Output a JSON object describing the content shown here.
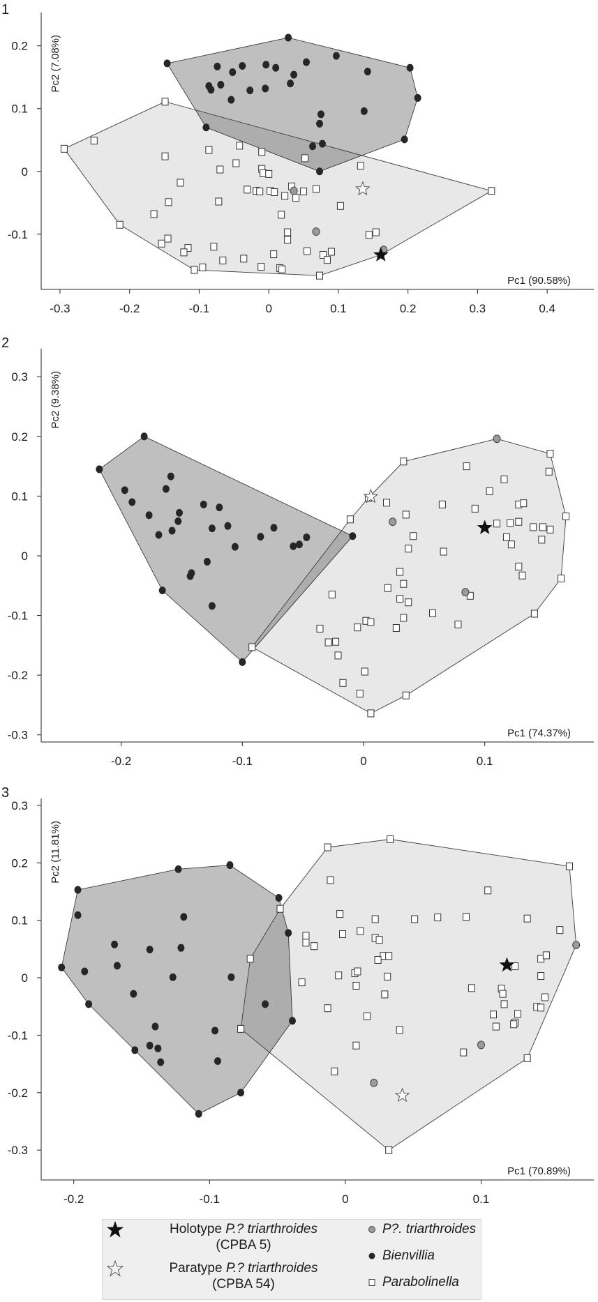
{
  "chart_data": [
    {
      "type": "scatter",
      "panel_label": "1",
      "xlabel": "Pc1 (90.58%)",
      "ylabel": "Pc2 (7.08%)",
      "xlim": [
        -0.327,
        0.467
      ],
      "ylim": [
        -0.188,
        0.253
      ],
      "xticks": [
        -0.3,
        -0.2,
        -0.1,
        0,
        0.1,
        0.2,
        0.3,
        0.4
      ],
      "xtick_labels": [
        "-0.3",
        "-0.2",
        "-0.1",
        "0",
        "0.1",
        "0.2",
        "0.3",
        "0.4"
      ],
      "yticks": [
        -0.1,
        0,
        0.1,
        0.2
      ],
      "ytick_labels": [
        "-0.1",
        "0",
        "0.1",
        "0.2"
      ],
      "grid": false,
      "series": {
        "bienvillia": [
          [
            -0.146,
            0.172
          ],
          [
            0.028,
            0.213
          ],
          [
            0.097,
            0.184
          ],
          [
            0.203,
            0.165
          ],
          [
            0.214,
            0.117
          ],
          [
            0.195,
            0.051
          ],
          [
            0.073,
            0.0
          ],
          [
            -0.09,
            0.07
          ],
          [
            -0.086,
            0.136
          ],
          [
            -0.083,
            0.13
          ],
          [
            -0.069,
            0.138
          ],
          [
            -0.074,
            0.167
          ],
          [
            -0.052,
            0.158
          ],
          [
            -0.038,
            0.168
          ],
          [
            -0.054,
            0.114
          ],
          [
            -0.027,
            0.129
          ],
          [
            -0.005,
            0.132
          ],
          [
            -0.004,
            0.17
          ],
          [
            0.01,
            0.165
          ],
          [
            0.036,
            0.154
          ],
          [
            0.031,
            0.14
          ],
          [
            0.054,
            0.174
          ],
          [
            0.142,
            0.159
          ],
          [
            0.137,
            0.096
          ],
          [
            0.075,
            0.091
          ],
          [
            0.073,
            0.076
          ],
          [
            0.077,
            0.044
          ],
          [
            0.063,
            0.04
          ]
        ],
        "parabolinella": [
          [
            -0.294,
            0.036
          ],
          [
            -0.251,
            0.049
          ],
          [
            -0.149,
            0.111
          ],
          [
            -0.149,
            0.024
          ],
          [
            -0.086,
            0.034
          ],
          [
            -0.042,
            0.041
          ],
          [
            -0.01,
            0.031
          ],
          [
            0.052,
            0.021
          ],
          [
            0.132,
            0.009
          ],
          [
            -0.07,
            0.003
          ],
          [
            -0.047,
            0.013
          ],
          [
            -0.01,
            0.004
          ],
          [
            -0.008,
            -0.003
          ],
          [
            0.0,
            -0.004
          ],
          [
            -0.127,
            -0.018
          ],
          [
            -0.031,
            -0.029
          ],
          [
            -0.018,
            -0.031
          ],
          [
            -0.013,
            -0.032
          ],
          [
            0.002,
            -0.031
          ],
          [
            0.008,
            -0.033
          ],
          [
            0.023,
            -0.039
          ],
          [
            0.033,
            -0.024
          ],
          [
            0.039,
            -0.042
          ],
          [
            0.05,
            -0.032
          ],
          [
            0.068,
            -0.028
          ],
          [
            0.32,
            -0.031
          ],
          [
            -0.144,
            -0.049
          ],
          [
            -0.072,
            -0.048
          ],
          [
            0.103,
            -0.055
          ],
          [
            -0.165,
            -0.068
          ],
          [
            0.018,
            -0.069
          ],
          [
            -0.214,
            -0.085
          ],
          [
            0.027,
            -0.097
          ],
          [
            0.027,
            -0.109
          ],
          [
            0.144,
            -0.101
          ],
          [
            0.154,
            -0.097
          ],
          [
            -0.154,
            -0.115
          ],
          [
            -0.145,
            -0.107
          ],
          [
            -0.116,
            -0.122
          ],
          [
            -0.122,
            -0.129
          ],
          [
            -0.079,
            -0.12
          ],
          [
            0.007,
            -0.132
          ],
          [
            0.055,
            -0.127
          ],
          [
            0.078,
            -0.133
          ],
          [
            0.09,
            -0.128
          ],
          [
            0.084,
            -0.141
          ],
          [
            -0.066,
            -0.142
          ],
          [
            -0.036,
            -0.139
          ],
          [
            -0.011,
            -0.152
          ],
          [
            0.016,
            -0.154
          ],
          [
            0.019,
            -0.156
          ],
          [
            -0.107,
            -0.157
          ],
          [
            -0.095,
            -0.153
          ],
          [
            0.073,
            -0.166
          ]
        ],
        "p_triarthroides": [
          [
            0.036,
            -0.031
          ],
          [
            0.068,
            -0.096
          ],
          [
            0.165,
            -0.125
          ]
        ],
        "holotype": [
          [
            0.161,
            -0.133
          ]
        ],
        "paratype": [
          [
            0.135,
            -0.028
          ]
        ]
      }
    },
    {
      "type": "scatter",
      "panel_label": "2",
      "xlabel": "Pc1 (74.37%)",
      "ylabel": "Pc2 (9.38%)",
      "xlim": [
        -0.266,
        0.19
      ],
      "ylim": [
        -0.312,
        0.347
      ],
      "xticks": [
        -0.2,
        -0.1,
        0,
        0.1
      ],
      "xtick_labels": [
        "-0.2",
        "-0.1",
        "0",
        "0.1"
      ],
      "yticks": [
        -0.3,
        -0.2,
        -0.1,
        0,
        0.1,
        0.2,
        0.3
      ],
      "ytick_labels": [
        "-0.3",
        "-0.2",
        "-0.1",
        "0",
        "0.1",
        "0.2",
        "0.3"
      ],
      "grid": false,
      "series": {
        "bienvillia": [
          [
            -0.181,
            0.2
          ],
          [
            -0.218,
            0.145
          ],
          [
            -0.197,
            0.11
          ],
          [
            -0.191,
            0.09
          ],
          [
            -0.177,
            0.068
          ],
          [
            -0.159,
            0.133
          ],
          [
            -0.163,
            0.112
          ],
          [
            -0.152,
            0.072
          ],
          [
            -0.153,
            0.058
          ],
          [
            -0.158,
            0.042
          ],
          [
            -0.169,
            0.035
          ],
          [
            -0.132,
            0.086
          ],
          [
            -0.119,
            0.081
          ],
          [
            -0.125,
            0.046
          ],
          [
            -0.112,
            0.05
          ],
          [
            -0.085,
            0.032
          ],
          [
            -0.074,
            0.047
          ],
          [
            -0.047,
            0.031
          ],
          [
            -0.009,
            0.033
          ],
          [
            -0.106,
            0.015
          ],
          [
            -0.058,
            0.016
          ],
          [
            -0.053,
            0.019
          ],
          [
            -0.129,
            -0.01
          ],
          [
            -0.142,
            -0.029
          ],
          [
            -0.143,
            -0.034
          ],
          [
            -0.166,
            -0.058
          ],
          [
            -0.125,
            -0.084
          ],
          [
            -0.1,
            -0.178
          ]
        ],
        "parabolinella": [
          [
            0.033,
            0.158
          ],
          [
            0.085,
            0.15
          ],
          [
            0.154,
            0.171
          ],
          [
            0.153,
            0.141
          ],
          [
            0.116,
            0.128
          ],
          [
            0.104,
            0.108
          ],
          [
            0.019,
            0.089
          ],
          [
            0.065,
            0.086
          ],
          [
            0.092,
            0.079
          ],
          [
            0.128,
            0.086
          ],
          [
            0.132,
            0.088
          ],
          [
            0.035,
            0.069
          ],
          [
            -0.011,
            0.061
          ],
          [
            0.167,
            0.066
          ],
          [
            0.11,
            0.054
          ],
          [
            0.121,
            0.055
          ],
          [
            0.128,
            0.057
          ],
          [
            0.14,
            0.048
          ],
          [
            0.148,
            0.048
          ],
          [
            0.154,
            0.044
          ],
          [
            0.041,
            0.033
          ],
          [
            0.118,
            0.031
          ],
          [
            0.147,
            0.027
          ],
          [
            0.004,
            0.097
          ],
          [
            0.122,
            0.019
          ],
          [
            0.037,
            0.012
          ],
          [
            0.066,
            0.007
          ],
          [
            0.128,
            -0.018
          ],
          [
            0.131,
            -0.033
          ],
          [
            0.163,
            -0.038
          ],
          [
            0.03,
            -0.027
          ],
          [
            0.033,
            -0.047
          ],
          [
            0.02,
            -0.054
          ],
          [
            -0.026,
            -0.065
          ],
          [
            0.03,
            -0.072
          ],
          [
            0.037,
            -0.078
          ],
          [
            0.088,
            -0.067
          ],
          [
            0.057,
            -0.096
          ],
          [
            0.141,
            -0.097
          ],
          [
            0.002,
            -0.109
          ],
          [
            0.006,
            -0.111
          ],
          [
            0.033,
            -0.104
          ],
          [
            -0.036,
            -0.122
          ],
          [
            -0.005,
            -0.12
          ],
          [
            0.027,
            -0.121
          ],
          [
            0.078,
            -0.115
          ],
          [
            -0.029,
            -0.145
          ],
          [
            -0.023,
            -0.144
          ],
          [
            -0.092,
            -0.153
          ],
          [
            -0.021,
            -0.167
          ],
          [
            0.001,
            -0.194
          ],
          [
            -0.017,
            -0.213
          ],
          [
            -0.003,
            -0.231
          ],
          [
            0.035,
            -0.234
          ],
          [
            0.006,
            -0.264
          ]
        ],
        "p_triarthroides": [
          [
            0.024,
            0.057
          ],
          [
            0.11,
            0.196
          ],
          [
            0.084,
            -0.061
          ]
        ],
        "holotype": [
          [
            0.1,
            0.047
          ]
        ],
        "paratype": [
          [
            0.006,
            0.099
          ]
        ]
      }
    },
    {
      "type": "scatter",
      "panel_label": "3",
      "xlabel": "Pc1 (70.89%)",
      "ylabel": "Pc2 (11.81%)",
      "xlim": [
        -0.224,
        0.183
      ],
      "ylim": [
        -0.352,
        0.312
      ],
      "xticks": [
        -0.2,
        -0.1,
        0,
        0.1
      ],
      "xtick_labels": [
        "-0.2",
        "-0.1",
        "0",
        "0.1"
      ],
      "yticks": [
        -0.3,
        -0.2,
        -0.1,
        0,
        0.1,
        0.2,
        0.3
      ],
      "ytick_labels": [
        "-0.3",
        "-0.2",
        "-0.1",
        "0",
        "0.1",
        "0.2",
        "0.3"
      ],
      "grid": false,
      "series": {
        "bienvillia": [
          [
            -0.085,
            0.196
          ],
          [
            -0.123,
            0.189
          ],
          [
            -0.197,
            0.153
          ],
          [
            -0.197,
            0.109
          ],
          [
            -0.049,
            0.139
          ],
          [
            -0.119,
            0.106
          ],
          [
            -0.042,
            0.078
          ],
          [
            -0.17,
            0.058
          ],
          [
            -0.144,
            0.049
          ],
          [
            -0.121,
            0.052
          ],
          [
            -0.209,
            0.018
          ],
          [
            -0.168,
            0.021
          ],
          [
            -0.192,
            0.011
          ],
          [
            -0.127,
            0.001
          ],
          [
            -0.084,
            0.001
          ],
          [
            -0.156,
            -0.028
          ],
          [
            -0.189,
            -0.046
          ],
          [
            -0.059,
            -0.046
          ],
          [
            -0.039,
            -0.075
          ],
          [
            -0.14,
            -0.085
          ],
          [
            -0.096,
            -0.092
          ],
          [
            -0.155,
            -0.126
          ],
          [
            -0.144,
            -0.118
          ],
          [
            -0.138,
            -0.123
          ],
          [
            -0.136,
            -0.147
          ],
          [
            -0.094,
            -0.145
          ],
          [
            -0.077,
            -0.2
          ],
          [
            -0.108,
            -0.237
          ]
        ],
        "parabolinella": [
          [
            -0.013,
            0.227
          ],
          [
            0.033,
            0.241
          ],
          [
            0.165,
            0.194
          ],
          [
            -0.011,
            0.17
          ],
          [
            0.105,
            0.152
          ],
          [
            -0.048,
            0.12
          ],
          [
            -0.004,
            0.111
          ],
          [
            0.022,
            0.102
          ],
          [
            0.051,
            0.102
          ],
          [
            0.068,
            0.105
          ],
          [
            0.089,
            0.106
          ],
          [
            0.134,
            0.103
          ],
          [
            0.158,
            0.083
          ],
          [
            -0.029,
            0.073
          ],
          [
            -0.029,
            0.061
          ],
          [
            -0.023,
            0.055
          ],
          [
            -0.002,
            0.076
          ],
          [
            0.011,
            0.081
          ],
          [
            0.022,
            0.069
          ],
          [
            0.025,
            0.066
          ],
          [
            0.028,
            0.038
          ],
          [
            0.032,
            0.038
          ],
          [
            0.024,
            0.031
          ],
          [
            0.144,
            0.033
          ],
          [
            0.148,
            0.039
          ],
          [
            0.125,
            0.02
          ],
          [
            -0.07,
            0.033
          ],
          [
            -0.005,
            0.004
          ],
          [
            0.007,
            0.008
          ],
          [
            0.009,
            0.011
          ],
          [
            0.031,
            0.002
          ],
          [
            0.144,
            0.003
          ],
          [
            -0.032,
            -0.008
          ],
          [
            0.008,
            -0.014
          ],
          [
            0.029,
            -0.029
          ],
          [
            0.093,
            -0.018
          ],
          [
            0.115,
            -0.019
          ],
          [
            0.116,
            -0.028
          ],
          [
            0.117,
            -0.046
          ],
          [
            0.147,
            -0.034
          ],
          [
            0.141,
            -0.051
          ],
          [
            0.144,
            -0.052
          ],
          [
            -0.013,
            -0.053
          ],
          [
            0.016,
            -0.067
          ],
          [
            0.109,
            -0.064
          ],
          [
            0.127,
            -0.063
          ],
          [
            0.125,
            -0.078
          ],
          [
            0.124,
            -0.081
          ],
          [
            0.111,
            -0.085
          ],
          [
            -0.077,
            -0.089
          ],
          [
            0.04,
            -0.091
          ],
          [
            0.008,
            -0.118
          ],
          [
            0.087,
            -0.13
          ],
          [
            0.134,
            -0.14
          ],
          [
            -0.008,
            -0.163
          ],
          [
            0.032,
            -0.3
          ]
        ],
        "p_triarthroides": [
          [
            0.17,
            0.057
          ],
          [
            0.1,
            -0.117
          ],
          [
            0.021,
            -0.183
          ]
        ],
        "holotype": [
          [
            0.119,
            0.022
          ]
        ],
        "paratype": [
          [
            0.042,
            -0.205
          ]
        ]
      }
    }
  ],
  "colors": {
    "bienvillia": "#262626",
    "p_triarthroides": "#9a9a9a",
    "parabolinella": "#ffffff",
    "holotype": "#111111",
    "paratype": "#ffffff",
    "hull_dark": "rgba(0,0,0,0.25)",
    "hull_light": "rgba(0,0,0,0.09)",
    "legend_bg": "#efefef"
  },
  "legend": {
    "holotype": {
      "prefix": "Holotype ",
      "taxon": "P.? triarthroides",
      "specimen": "(CPBA 5)"
    },
    "paratype": {
      "prefix": "Paratype ",
      "taxon": "P.? triarthroides",
      "specimen": "(CPBA 54)"
    },
    "p_triarthroides": "P?. triarthroides",
    "bienvillia": "Bienvillia",
    "parabolinella": "Parabolinella"
  }
}
